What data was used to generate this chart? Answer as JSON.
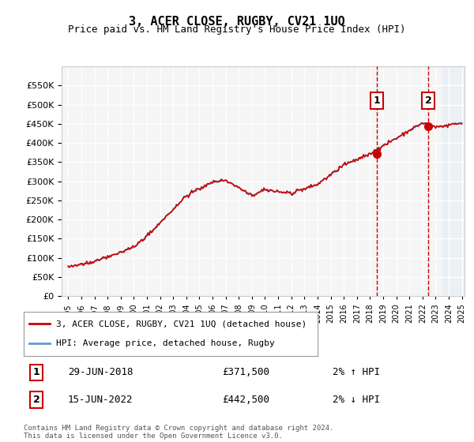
{
  "title": "3, ACER CLOSE, RUGBY, CV21 1UQ",
  "subtitle": "Price paid vs. HM Land Registry's House Price Index (HPI)",
  "legend_line1": "3, ACER CLOSE, RUGBY, CV21 1UQ (detached house)",
  "legend_line2": "HPI: Average price, detached house, Rugby",
  "annotation1_label": "1",
  "annotation1_date": "29-JUN-2018",
  "annotation1_price": "£371,500",
  "annotation1_hpi": "2% ↑ HPI",
  "annotation2_label": "2",
  "annotation2_date": "15-JUN-2022",
  "annotation2_price": "£442,500",
  "annotation2_hpi": "2% ↓ HPI",
  "footer": "Contains HM Land Registry data © Crown copyright and database right 2024.\nThis data is licensed under the Open Government Licence v3.0.",
  "ylim": [
    0,
    600000
  ],
  "yticks": [
    0,
    50000,
    100000,
    150000,
    200000,
    250000,
    300000,
    350000,
    400000,
    450000,
    500000,
    550000
  ],
  "ytick_labels": [
    "£0",
    "£50K",
    "£100K",
    "£150K",
    "£200K",
    "£250K",
    "£300K",
    "£350K",
    "£400K",
    "£450K",
    "£500K",
    "£550K"
  ],
  "background_color": "#ffffff",
  "plot_bg_color": "#f5f5f5",
  "grid_color": "#ffffff",
  "line_color_hpi": "#6699cc",
  "line_color_price": "#cc0000",
  "marker_color": "#cc0000",
  "vline_color": "#cc0000",
  "annotation_box_color": "#cc0000",
  "shade_color": "#e8eef5",
  "year_start": 1995,
  "year_end": 2025,
  "sale1_year": 2018.5,
  "sale1_value": 371500,
  "sale2_year": 2022.45,
  "sale2_value": 442500
}
